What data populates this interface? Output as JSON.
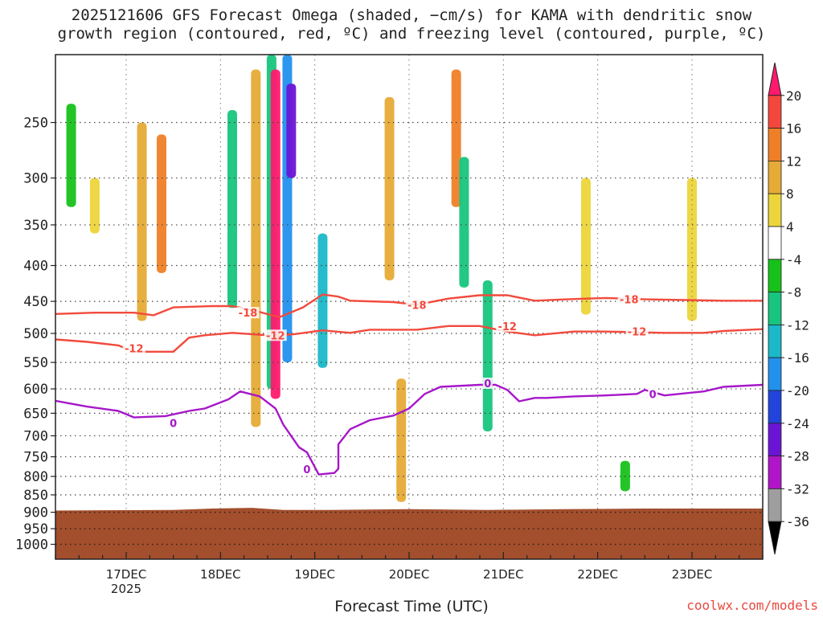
{
  "title": {
    "line1": "2025121606 GFS Forecast Omega (shaded, −cm/s) for KAMA with dendritic snow",
    "line2": "growth region (contoured, red, ºC) and freezing level (contoured, purple, ºC)"
  },
  "credit": "coolwx.com/models",
  "chart_data": {
    "type": "heatmap",
    "title": "2025121606 GFS Forecast Omega (shaded, −cm/s) for KAMA with dendritic snow growth region (contoured, red, ºC) and freezing level (contoured, purple, ºC)",
    "xlabel": "Forecast Time (UTC)",
    "ylabel": "",
    "x_ticks": [
      {
        "label": "17DEC",
        "sublabel": "2025",
        "t": 18
      },
      {
        "label": "18DEC",
        "sublabel": "",
        "t": 42
      },
      {
        "label": "19DEC",
        "sublabel": "",
        "t": 66
      },
      {
        "label": "20DEC",
        "sublabel": "",
        "t": 90
      },
      {
        "label": "21DEC",
        "sublabel": "",
        "t": 114
      },
      {
        "label": "22DEC",
        "sublabel": "",
        "t": 138
      },
      {
        "label": "23DEC",
        "sublabel": "",
        "t": 162
      }
    ],
    "x_range_hours": [
      0,
      180
    ],
    "y_ticks": [
      250,
      300,
      350,
      400,
      450,
      500,
      550,
      600,
      650,
      700,
      750,
      800,
      850,
      900,
      950,
      1000
    ],
    "y_range_hpa": [
      200,
      1050
    ],
    "y_scale": "log-pressure",
    "grid": true,
    "colorbar": {
      "labels": [
        20,
        16,
        12,
        8,
        4,
        -4,
        -8,
        -12,
        -16,
        -20,
        -24,
        -28,
        -32,
        -36
      ],
      "colors": [
        "#ff1a6e",
        "#f4473c",
        "#ef7f27",
        "#e6ab36",
        "#ecd53a",
        "#ffffff",
        "#16c219",
        "#17c57e",
        "#1ab8c8",
        "#2291ee",
        "#2145dc",
        "#6b14d6",
        "#b015c9",
        "#9e9e9e",
        "#000000"
      ]
    },
    "terrain_color": "#a34e2c",
    "terrain_top_hpa": [
      [
        0,
        895
      ],
      [
        30,
        893
      ],
      [
        40,
        889
      ],
      [
        50,
        887
      ],
      [
        58,
        893
      ],
      [
        70,
        893
      ],
      [
        90,
        891
      ],
      [
        110,
        893
      ],
      [
        130,
        891
      ],
      [
        150,
        889
      ],
      [
        170,
        889
      ],
      [
        180,
        889
      ]
    ],
    "contours": [
      {
        "label": "-18",
        "color": "#f24a3c",
        "points": [
          [
            0,
            469
          ],
          [
            10,
            467
          ],
          [
            20,
            467
          ],
          [
            25,
            471
          ],
          [
            30,
            459
          ],
          [
            40,
            457
          ],
          [
            45,
            457
          ],
          [
            50,
            463
          ],
          [
            57,
            474
          ],
          [
            63,
            459
          ],
          [
            68,
            440
          ],
          [
            72,
            443
          ],
          [
            75,
            449
          ],
          [
            86,
            451
          ],
          [
            92,
            455
          ],
          [
            100,
            446
          ],
          [
            108,
            441
          ],
          [
            115,
            441
          ],
          [
            122,
            449
          ],
          [
            130,
            447
          ],
          [
            140,
            445
          ],
          [
            150,
            447
          ],
          [
            170,
            449
          ],
          [
            180,
            449
          ]
        ],
        "label_at": [
          [
            49,
            467
          ],
          [
            92,
            455
          ],
          [
            146,
            447
          ]
        ]
      },
      {
        "label": "-12",
        "color": "#f24a3c",
        "points": [
          [
            0,
            510
          ],
          [
            8,
            514
          ],
          [
            16,
            520
          ],
          [
            20,
            531
          ],
          [
            30,
            531
          ],
          [
            34,
            507
          ],
          [
            38,
            503
          ],
          [
            45,
            499
          ],
          [
            56,
            504
          ],
          [
            61,
            501
          ],
          [
            68,
            495
          ],
          [
            75,
            499
          ],
          [
            80,
            494
          ],
          [
            92,
            494
          ],
          [
            100,
            488
          ],
          [
            108,
            488
          ],
          [
            115,
            497
          ],
          [
            122,
            503
          ],
          [
            132,
            497
          ],
          [
            140,
            497
          ],
          [
            155,
            499
          ],
          [
            165,
            499
          ],
          [
            170,
            496
          ],
          [
            180,
            493
          ]
        ],
        "label_at": [
          [
            20,
            525
          ],
          [
            56,
            503
          ],
          [
            115,
            488
          ],
          [
            148,
            497
          ]
        ]
      },
      {
        "label": "0",
        "color": "#a617c9",
        "points": [
          [
            0,
            624
          ],
          [
            8,
            636
          ],
          [
            16,
            645
          ],
          [
            20,
            659
          ],
          [
            28,
            656
          ],
          [
            34,
            645
          ],
          [
            38,
            640
          ],
          [
            44,
            621
          ],
          [
            47,
            605
          ],
          [
            52,
            615
          ],
          [
            56,
            640
          ],
          [
            58,
            675
          ],
          [
            62,
            727
          ],
          [
            64,
            739
          ],
          [
            67,
            795
          ],
          [
            71,
            791
          ],
          [
            72,
            780
          ],
          [
            72,
            720
          ],
          [
            75,
            685
          ],
          [
            80,
            665
          ],
          [
            86,
            655
          ],
          [
            90,
            640
          ],
          [
            94,
            610
          ],
          [
            98,
            596
          ],
          [
            108,
            592
          ],
          [
            112,
            592
          ],
          [
            115,
            602
          ],
          [
            118,
            625
          ],
          [
            122,
            618
          ],
          [
            125,
            618
          ],
          [
            132,
            615
          ],
          [
            140,
            613
          ],
          [
            148,
            610
          ],
          [
            150,
            602
          ],
          [
            155,
            613
          ],
          [
            165,
            605
          ],
          [
            170,
            596
          ],
          [
            180,
            592
          ]
        ],
        "label_at": [
          [
            30,
            671
          ],
          [
            64,
            781
          ],
          [
            110,
            589
          ],
          [
            152,
            610
          ]
        ]
      }
    ],
    "omega_regions": [
      {
        "t": 4,
        "p_top": 235,
        "p_bot": 330,
        "value": -8
      },
      {
        "t": 10,
        "p_top": 300,
        "p_bot": 360,
        "value": 6
      },
      {
        "t": 22,
        "p_top": 250,
        "p_bot": 480,
        "value": 9
      },
      {
        "t": 27,
        "p_top": 260,
        "p_bot": 410,
        "value": 14
      },
      {
        "t": 45,
        "p_top": 240,
        "p_bot": 460,
        "value": -10
      },
      {
        "t": 51,
        "p_top": 210,
        "p_bot": 680,
        "value": 10
      },
      {
        "t": 55,
        "p_top": 200,
        "p_bot": 600,
        "value": -12
      },
      {
        "t": 56,
        "p_top": 210,
        "p_bot": 620,
        "value": 20
      },
      {
        "t": 59,
        "p_top": 200,
        "p_bot": 550,
        "value": -18
      },
      {
        "t": 60,
        "p_top": 220,
        "p_bot": 300,
        "value": -26
      },
      {
        "t": 68,
        "p_top": 360,
        "p_bot": 560,
        "value": -14
      },
      {
        "t": 85,
        "p_top": 230,
        "p_bot": 420,
        "value": 11
      },
      {
        "t": 88,
        "p_top": 580,
        "p_bot": 870,
        "value": 9
      },
      {
        "t": 102,
        "p_top": 210,
        "p_bot": 330,
        "value": 12
      },
      {
        "t": 104,
        "p_top": 280,
        "p_bot": 430,
        "value": -10
      },
      {
        "t": 110,
        "p_top": 420,
        "p_bot": 690,
        "value": -9
      },
      {
        "t": 135,
        "p_top": 300,
        "p_bot": 470,
        "value": 6
      },
      {
        "t": 145,
        "p_top": 760,
        "p_bot": 840,
        "value": -8
      },
      {
        "t": 162,
        "p_top": 300,
        "p_bot": 480,
        "value": 5
      }
    ]
  }
}
